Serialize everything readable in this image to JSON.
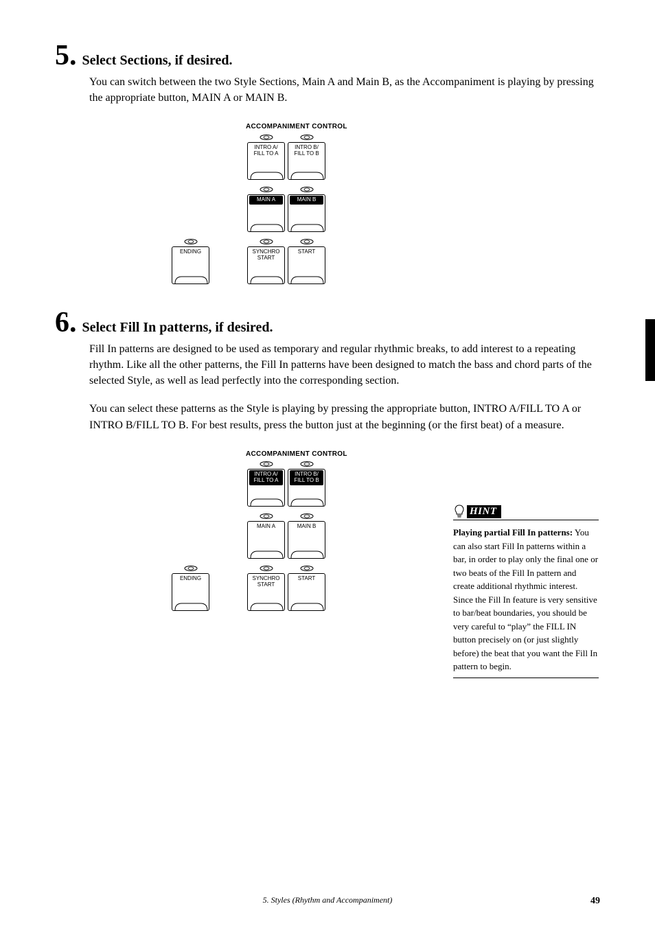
{
  "step5": {
    "num": "5.",
    "title": "Select Sections, if desired.",
    "body": "You can switch between the two Style Sections, Main A and Main B, as the Accompaniment is playing by pressing the appropriate button, MAIN A or MAIN B."
  },
  "step6": {
    "num": "6.",
    "title": "Select Fill In patterns, if desired.",
    "body1": "Fill In patterns are designed to be used as temporary and regular rhythmic breaks, to add interest to a repeating rhythm.  Like all the other patterns, the Fill In patterns have been designed to match the bass and chord parts of the selected Style, as well as lead perfectly into the corresponding section.",
    "body2": "You can select these patterns as the Style is playing by pressing the appropriate button, INTRO A/FILL TO A or INTRO B/FILL TO B.  For best results, press the button just at the beginning (or the first beat) of a measure."
  },
  "panel": {
    "title": "ACCOMPANIMENT CONTROL",
    "buttons": {
      "introA": "INTRO A/\nFILL TO A",
      "introB": "INTRO B/\nFILL TO B",
      "mainA": "MAIN A",
      "mainB": "MAIN B",
      "ending": "ENDING",
      "synchro": "SYNCHRO\nSTART",
      "start": "START"
    }
  },
  "hint": {
    "label": "HINT",
    "bold": "Playing partial Fill In patterns:",
    "body": "You can also start Fill In patterns within a bar, in order to play only the final one or two beats of the Fill In pattern and create additional rhythmic interest. Since the Fill In feature is very sensitive to bar/beat boundaries, you should be very careful to “play” the FILL IN button precisely on (or just slightly before) the beat that you want the Fill In pattern to begin."
  },
  "footer": {
    "chapNum": "5.",
    "chapTitle": "Styles (Rhythm and Accompaniment)",
    "pageNum": "49"
  },
  "highlights": {
    "panel1": [
      "mainA",
      "mainB"
    ],
    "panel2": [
      "introA",
      "introB"
    ]
  }
}
